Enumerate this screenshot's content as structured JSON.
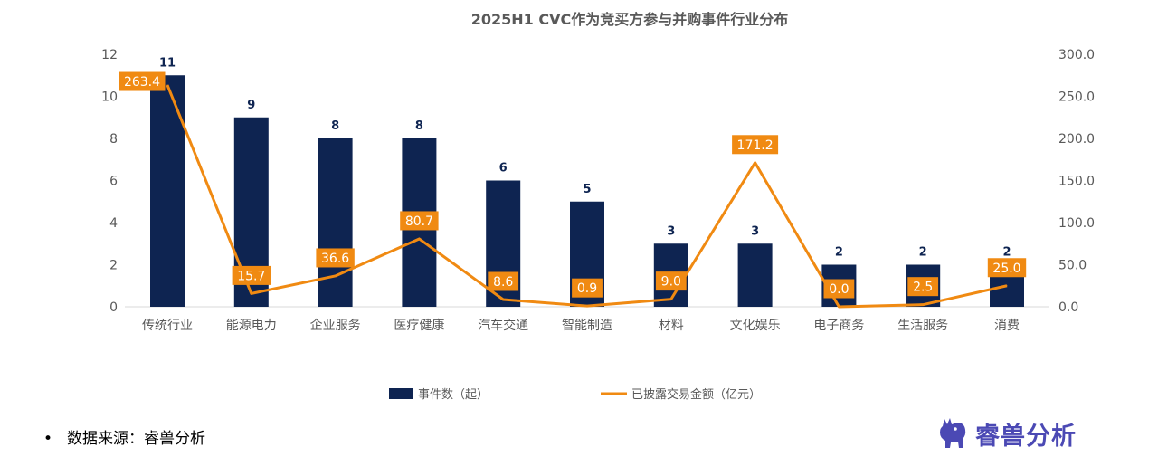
{
  "chart_data": {
    "type": "bar+line",
    "title": "2025H1 CVC作为竞买方参与并购事件行业分布",
    "categories": [
      "传统行业",
      "能源电力",
      "企业服务",
      "医疗健康",
      "汽车交通",
      "智能制造",
      "材料",
      "文化娱乐",
      "电子商务",
      "生活服务",
      "消费"
    ],
    "series": [
      {
        "name": "事件数（起）",
        "type": "bar",
        "axis": "left",
        "color": "#0e2451",
        "values": [
          11,
          9,
          8,
          8,
          6,
          5,
          3,
          3,
          2,
          2,
          2
        ],
        "labels": [
          "11",
          "9",
          "8",
          "8",
          "6",
          "5",
          "3",
          "3",
          "2",
          "2",
          "2"
        ]
      },
      {
        "name": "已披露交易金额（亿元）",
        "type": "line",
        "axis": "right",
        "color": "#f08a12",
        "values": [
          263.4,
          15.7,
          36.6,
          80.7,
          8.6,
          0.9,
          9.0,
          171.2,
          0.0,
          2.5,
          25.0
        ],
        "labels": [
          "263.4",
          "15.7",
          "36.6",
          "80.7",
          "8.6",
          "0.9",
          "9.0",
          "171.2",
          "0.0",
          "2.5",
          "25.0"
        ]
      }
    ],
    "y_left": {
      "min": 0,
      "max": 12,
      "ticks": [
        0,
        2,
        4,
        6,
        8,
        10,
        12
      ],
      "tick_labels": [
        "0",
        "2",
        "4",
        "6",
        "8",
        "10",
        "12"
      ]
    },
    "y_right": {
      "min": 0,
      "max": 300,
      "ticks": [
        0,
        50,
        100,
        150,
        200,
        250,
        300
      ],
      "tick_labels": [
        "0.0",
        "50.0",
        "100.0",
        "150.0",
        "200.0",
        "250.0",
        "300.0"
      ]
    },
    "grid": false,
    "legend_position": "bottom",
    "legend": [
      "事件数（起）",
      "已披露交易金额（亿元）"
    ]
  },
  "footer": {
    "bullet": "•",
    "source": "数据来源：睿兽分析",
    "brand": "睿兽分析"
  },
  "colors": {
    "bar": "#0e2451",
    "line": "#f08a12",
    "brand": "#4b49b4"
  }
}
